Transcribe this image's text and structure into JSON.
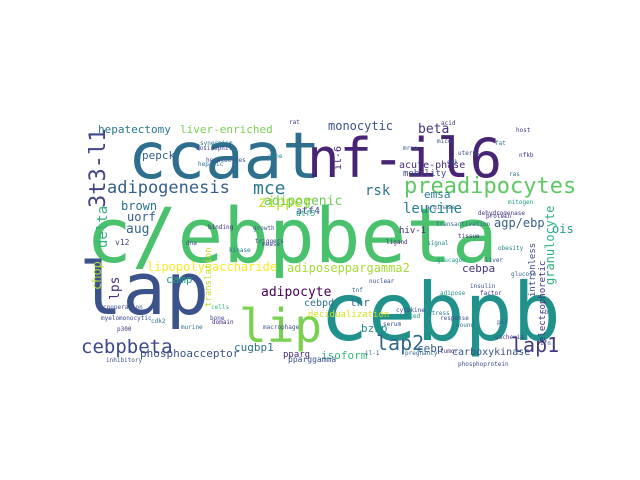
{
  "words": [
    {
      "text": "c/ebpbeta",
      "color": "#4ac16d"
    },
    {
      "text": "ccaat",
      "color": "#2e6f8e"
    },
    {
      "text": "nf-il6",
      "color": "#482475"
    },
    {
      "text": "cebpb",
      "color": "#21918c"
    },
    {
      "text": "lap",
      "color": "#3b528b"
    },
    {
      "text": "lip",
      "color": "#7ad151"
    },
    {
      "text": "preadipocytes",
      "color": "#5ec962"
    },
    {
      "text": "3t3-l1",
      "color": "#414487"
    },
    {
      "text": "adipogenesis",
      "color": "#355f8d"
    },
    {
      "text": "mce",
      "color": "#2a788e"
    },
    {
      "text": "lap2",
      "color": "#31688e"
    },
    {
      "text": "lap1",
      "color": "#443983"
    },
    {
      "text": "cebpbeta",
      "color": "#3e4989"
    },
    {
      "text": "leucine",
      "color": "#26828e"
    },
    {
      "text": "rsk",
      "color": "#2c728e"
    },
    {
      "text": "delta",
      "color": "#2fb47c"
    },
    {
      "text": "adipocyte",
      "color": "#440154"
    },
    {
      "text": "beta",
      "color": "#46327e"
    },
    {
      "text": "monocytic",
      "color": "#3b528b"
    },
    {
      "text": "hepatectomy",
      "color": "#2a788e"
    },
    {
      "text": "liver-enriched",
      "color": "#7ad151"
    },
    {
      "text": "il-6",
      "color": "#481f70"
    },
    {
      "text": "zipper",
      "color": "#bddf26"
    },
    {
      "text": "adipogenic",
      "color": "#6ece58"
    },
    {
      "text": "atf4",
      "color": "#3e4989"
    },
    {
      "text": "brown",
      "color": "#2c728e"
    },
    {
      "text": "uorf",
      "color": "#38598c"
    },
    {
      "text": "emsa",
      "color": "#2a788e"
    },
    {
      "text": "acute-phase",
      "color": "#472d7b"
    },
    {
      "text": "agp/ebp",
      "color": "#355f8d"
    },
    {
      "text": "granulocyte",
      "color": "#2fb47c"
    },
    {
      "text": "pepck",
      "color": "#355f8d"
    },
    {
      "text": "lps",
      "color": "#472d7b"
    },
    {
      "text": "aug",
      "color": "#31688e"
    },
    {
      "text": "chop",
      "color": "#addc30"
    },
    {
      "text": "camp",
      "color": "#20a486"
    },
    {
      "text": "lipopolysaccharide",
      "color": "#fde725"
    },
    {
      "text": "adiposeppargamma2",
      "color": "#a5db36"
    },
    {
      "text": "cebpa",
      "color": "#46337e"
    },
    {
      "text": "ois",
      "color": "#1f9e89"
    },
    {
      "text": "hiv-1",
      "color": "#482878"
    },
    {
      "text": "thr",
      "color": "#2c728e"
    },
    {
      "text": "bzip",
      "color": "#21918c"
    },
    {
      "text": "cebp",
      "color": "#355f8d"
    },
    {
      "text": "cebpd",
      "color": "#2e6f8e"
    },
    {
      "text": "cugbp1",
      "color": "#2c728e"
    },
    {
      "text": "isoform",
      "color": "#35b779"
    },
    {
      "text": "pparg",
      "color": "#482878"
    },
    {
      "text": "carboxykinase",
      "color": "#3b528b"
    },
    {
      "text": "phosphoacceptor",
      "color": "#3b528b"
    },
    {
      "text": "translation",
      "color": "#c2df23"
    },
    {
      "text": "intronless",
      "color": "#3e4989"
    },
    {
      "text": "electrophoretic",
      "color": "#46327e"
    },
    {
      "text": "decidualization",
      "color": "#d2e21b"
    },
    {
      "text": "pparggamma",
      "color": "#3b528b"
    },
    {
      "text": "v12",
      "color": "#414487"
    },
    {
      "text": "mobility",
      "color": "#3e4989"
    },
    {
      "text": "atf5",
      "color": "#22a785"
    },
    {
      "text": "glucagon",
      "color": "#1f9e89"
    },
    {
      "text": "cachexia",
      "color": "#433e85"
    },
    {
      "text": "insulin",
      "color": "#3b528b"
    },
    {
      "text": "macrophage",
      "color": "#3b528b"
    },
    {
      "text": "protein",
      "color": "#46327e"
    },
    {
      "text": "obesity",
      "color": "#26828e"
    },
    {
      "text": "triggers",
      "color": "#3e4989"
    },
    {
      "text": "synergism",
      "color": "#2a788e"
    },
    {
      "text": "hepatocytes",
      "color": "#3b528b"
    },
    {
      "text": "eosinophil",
      "color": "#414487"
    },
    {
      "text": "myelomonocytic",
      "color": "#3e4989"
    },
    {
      "text": "ligand",
      "color": "#46327e"
    },
    {
      "text": "pregnancy",
      "color": "#355f8d"
    },
    {
      "text": "phosphoprotein",
      "color": "#3b528b"
    },
    {
      "text": "adipose",
      "color": "#21918c"
    },
    {
      "text": "dehydrogenase",
      "color": "#46327e"
    },
    {
      "text": "cooperation",
      "color": "#3e4989"
    },
    {
      "text": "inhibitory",
      "color": "#3b528b"
    },
    {
      "text": "murine",
      "color": "#2c728e"
    },
    {
      "text": "tissue",
      "color": "#46327e"
    },
    {
      "text": "response",
      "color": "#3b528b"
    },
    {
      "text": "kinase",
      "color": "#2a788e"
    },
    {
      "text": "arginase",
      "color": "#355f8d"
    },
    {
      "text": "transactivation",
      "color": "#31688e"
    },
    {
      "text": "cytokine",
      "color": "#3e4989"
    },
    {
      "text": "wound",
      "color": "#2c728e"
    },
    {
      "text": "binding",
      "color": "#482878"
    },
    {
      "text": "mitogen",
      "color": "#1f9e89"
    },
    {
      "text": "rat",
      "color": "#46327e"
    },
    {
      "text": "liver",
      "color": "#3b528b"
    },
    {
      "text": "tnf",
      "color": "#355f8d"
    },
    {
      "text": "domain",
      "color": "#482878"
    },
    {
      "text": "cells",
      "color": "#35b779"
    },
    {
      "text": "mouse",
      "color": "#3e4989"
    },
    {
      "text": "fat",
      "color": "#2c728e"
    },
    {
      "text": "nfkb",
      "color": "#46327e"
    },
    {
      "text": "erk",
      "color": "#3b528b"
    },
    {
      "text": "gene",
      "color": "#26828e"
    },
    {
      "text": "dna",
      "color": "#414487"
    },
    {
      "text": "ras",
      "color": "#2a788e"
    },
    {
      "text": "host",
      "color": "#46327e"
    },
    {
      "text": "mice",
      "color": "#3b528b"
    },
    {
      "text": "mrna",
      "color": "#355f8d"
    },
    {
      "text": "uterus",
      "color": "#3e4989"
    },
    {
      "text": "glucose",
      "color": "#31688e"
    },
    {
      "text": "factor",
      "color": "#46327e"
    },
    {
      "text": "hepatic",
      "color": "#2c728e"
    },
    {
      "text": "growth",
      "color": "#3b528b"
    },
    {
      "text": "signal",
      "color": "#26828e"
    },
    {
      "text": "tumor",
      "color": "#46327e"
    },
    {
      "text": "nuclear",
      "color": "#3e4989"
    },
    {
      "text": "stress",
      "color": "#2a788e"
    },
    {
      "text": "serum",
      "color": "#3b528b"
    },
    {
      "text": "acid",
      "color": "#46327e"
    },
    {
      "text": "induced",
      "color": "#21918c"
    },
    {
      "text": "bone",
      "color": "#3e4989"
    },
    {
      "text": "il-1",
      "color": "#3b528b"
    },
    {
      "text": "p300",
      "color": "#46327e"
    },
    {
      "text": "cdk2",
      "color": "#2c728e"
    },
    {
      "text": "rb",
      "color": "#3b528b"
    },
    {
      "text": "p53",
      "color": "#355f8d"
    },
    {
      "text": "ifn",
      "color": "#3e4989"
    }
  ]
}
